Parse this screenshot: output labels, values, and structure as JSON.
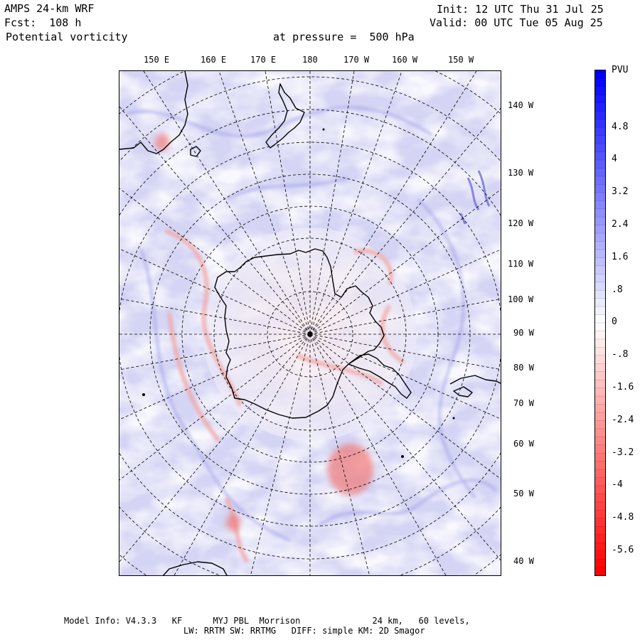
{
  "header": {
    "model_name": "AMPS 24-km WRF",
    "forecast": "Fcst:  108 h",
    "variable": "Potential vorticity",
    "level": "at pressure =  500 hPa",
    "init_time": "Init: 12 UTC Thu 31 Jul 25",
    "valid_time": "Valid: 00 UTC Tue 05 Aug 25"
  },
  "top_longitude_labels": [
    "150 E",
    "160 E",
    "170 E",
    "180",
    "170 W",
    "160 W",
    "150 W"
  ],
  "right_longitude_labels": [
    "140 W",
    "130 W",
    "120 W",
    "110 W",
    "100 W",
    "90 W",
    "80 W",
    "70 W",
    "60 W",
    "50 W",
    "40 W"
  ],
  "colorbar": {
    "unit": "PVU",
    "tick_labels": [
      "4.8",
      "4",
      "3.2",
      "2.4",
      "1.6",
      ".8",
      "0",
      "-.8",
      "-1.6",
      "-2.4",
      "-3.2",
      "-4",
      "-4.8",
      "-5.6"
    ],
    "colors": {
      "max_positive": "#0000ff",
      "near_zero": "#ffffff",
      "min_negative": "#ff0000",
      "field_background": "#d6d6f3"
    }
  },
  "footer": {
    "line1": "Model Info: V4.3.3   KF      MYJ PBL  Morrison              24 km,   60 levels,",
    "line2": "LW: RRTM SW: RRTMG   DIFF: simple KM: 2D Smagor"
  }
}
